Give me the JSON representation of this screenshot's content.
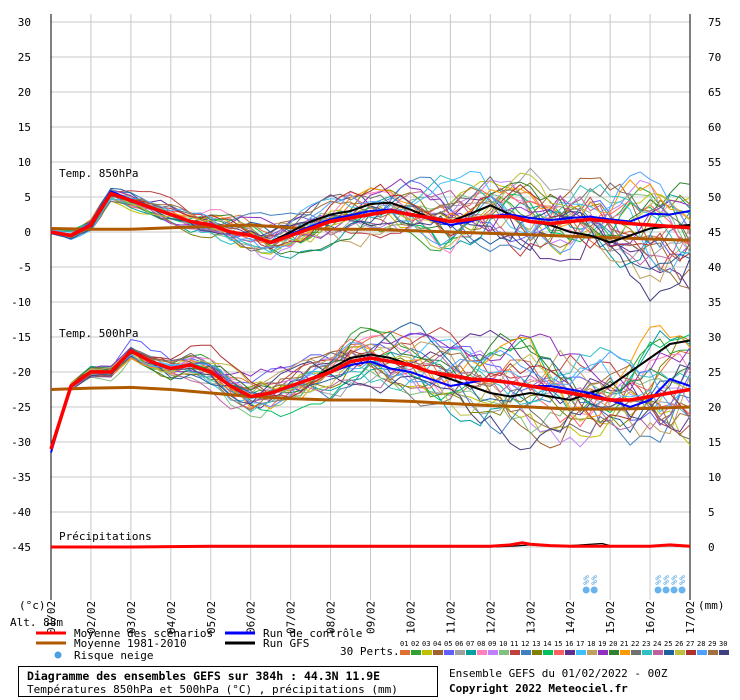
{
  "chart_data": {
    "type": "line",
    "title": "Diagramme des ensembles GEFS sur 384h : 44.3N 11.9E",
    "subtitle": "Températures 850hPa et 500hPa (°C) , précipitations (mm)",
    "run_info": "Ensemble GEFS du 01/02/2022 - 00Z",
    "copyright": "Copyright 2022 Meteociel.fr",
    "altitude": "Alt. 88m",
    "left_unit": "(°c)",
    "right_unit": "(mm)",
    "left_axis": {
      "ticks": [
        "30",
        "25",
        "20",
        "15",
        "10",
        "5",
        "0",
        "-5",
        "-10",
        "-15",
        "-20",
        "-25",
        "-30",
        "-35",
        "-40",
        "-45"
      ],
      "range": [
        -45,
        30
      ]
    },
    "right_axis": {
      "ticks": [
        "75",
        "70",
        "65",
        "60",
        "55",
        "50",
        "45",
        "40",
        "35",
        "30",
        "25",
        "20",
        "15",
        "10",
        "5",
        "0"
      ],
      "range": [
        0,
        75
      ]
    },
    "dates": [
      "01/02",
      "02/02",
      "03/02",
      "04/02",
      "05/02",
      "06/02",
      "07/02",
      "08/02",
      "09/02",
      "10/02",
      "11/02",
      "12/02",
      "13/02",
      "14/02",
      "15/02",
      "16/02",
      "17/02"
    ],
    "panel_labels": {
      "t850": "Temp. 850hPa",
      "t500": "Temp. 500hPa",
      "precip": "Précipitations"
    },
    "snow_risk_marker": "%%",
    "snow_risk_days": [
      13.4,
      13.6,
      15.2,
      15.4,
      15.6,
      15.8
    ],
    "members_count_label": "30 Perts.",
    "member_labels": [
      "01",
      "02",
      "03",
      "04",
      "05",
      "06",
      "07",
      "08",
      "09",
      "10",
      "11",
      "12",
      "13",
      "14",
      "15",
      "16",
      "17",
      "18",
      "19",
      "20",
      "21",
      "22",
      "23",
      "24",
      "25",
      "26",
      "27",
      "28",
      "29",
      "30"
    ],
    "member_colors": [
      "#e07030",
      "#30a030",
      "#c0c000",
      "#a06030",
      "#6060ff",
      "#a0a0a0",
      "#00a0a0",
      "#ff80c0",
      "#c080ff",
      "#80c080",
      "#c04040",
      "#4080c0",
      "#808000",
      "#00c060",
      "#ff6060",
      "#603090",
      "#40c0ff",
      "#c0a060",
      "#9030c0",
      "#308030",
      "#ff9900",
      "#707070",
      "#30c0c0",
      "#c060a0",
      "#2060a0",
      "#c0c040",
      "#b03030",
      "#50a0ff",
      "#a07040",
      "#404080"
    ],
    "legend": [
      {
        "label": "Moyenne des scénarios",
        "color": "#ff0000"
      },
      {
        "label": "Moyenne 1981-2010",
        "color": "#b05a00"
      },
      {
        "label": "Risque neige",
        "color": "#4aa0e0"
      },
      {
        "label": "Run de contrôle",
        "color": "#0000ff"
      },
      {
        "label": "Run GFS",
        "color": "#000000"
      }
    ],
    "series": [
      {
        "name": "Moyenne des scénarios",
        "panel": "t850",
        "x": [
          0,
          0.5,
          1,
          1.5,
          2,
          2.5,
          3,
          3.5,
          4,
          4.5,
          5,
          5.5,
          6,
          6.5,
          7,
          7.5,
          8,
          8.5,
          9,
          9.5,
          10,
          10.5,
          11,
          11.5,
          12,
          12.5,
          13,
          13.5,
          14,
          14.5,
          15,
          15.5,
          16
        ],
        "y": [
          0,
          -0.5,
          1,
          5.5,
          4.5,
          3.5,
          2.5,
          1.5,
          1,
          0,
          -0.5,
          -1.5,
          -0.5,
          0.5,
          1.5,
          2,
          2.5,
          3,
          2.5,
          2,
          1.5,
          1.8,
          2.2,
          2.2,
          1.5,
          1.2,
          1.5,
          1.8,
          1.5,
          1.2,
          1,
          0.8,
          0.6
        ]
      },
      {
        "name": "Moyenne 1981-2010",
        "panel": "t850",
        "x": [
          0,
          1,
          2,
          3,
          4,
          5,
          6,
          7,
          8,
          9,
          10,
          11,
          12,
          13,
          14,
          15,
          16
        ],
        "y": [
          0.5,
          0.4,
          0.4,
          0.6,
          0.8,
          1,
          0.6,
          0.4,
          0.4,
          0.2,
          0,
          -0.2,
          -0.4,
          -0.6,
          -0.8,
          -1,
          -1.2
        ]
      },
      {
        "name": "Run de contrôle",
        "panel": "t850",
        "x": [
          0,
          0.5,
          1,
          1.5,
          2,
          2.5,
          3,
          3.5,
          4,
          4.5,
          5,
          5.5,
          6,
          6.5,
          7,
          7.5,
          8,
          8.5,
          9,
          9.5,
          10,
          10.5,
          11,
          11.5,
          12,
          12.5,
          13,
          13.5,
          14,
          14.5,
          15,
          15.5,
          16
        ],
        "y": [
          0,
          -0.5,
          1.2,
          5.8,
          4.6,
          3.5,
          2.4,
          1.4,
          1,
          0,
          -0.4,
          -1.6,
          -0.3,
          0.8,
          1.8,
          2.4,
          3,
          3.2,
          2.6,
          1.8,
          1,
          1.5,
          2.3,
          2.5,
          2,
          1.7,
          2,
          2.2,
          1.8,
          1.5,
          2.6,
          2.5,
          3
        ]
      },
      {
        "name": "Run GFS",
        "panel": "t850",
        "x": [
          0,
          0.5,
          1,
          1.5,
          2,
          2.5,
          3,
          3.5,
          4,
          4.5,
          5,
          5.5,
          6,
          6.5,
          7,
          7.5,
          8,
          8.5,
          9,
          9.5,
          10,
          10.5,
          11,
          11.5,
          12,
          12.5,
          13,
          13.5,
          14,
          14.5,
          15,
          15.5,
          16
        ],
        "y": [
          0,
          -0.6,
          1,
          5.6,
          4.5,
          3.4,
          2.5,
          1.5,
          1,
          0,
          -0.5,
          -1.4,
          0,
          1.5,
          2.5,
          3,
          4,
          4.2,
          3.2,
          2,
          1.5,
          2.6,
          3.8,
          2.5,
          1.5,
          1,
          0,
          -0.5,
          -1.5,
          -0.5,
          0.5,
          0.8,
          1
        ]
      },
      {
        "name": "Moyenne des scénarios",
        "panel": "t500",
        "x": [
          0,
          0.5,
          1,
          1.5,
          2,
          2.5,
          3,
          3.5,
          4,
          4.5,
          5,
          5.5,
          6,
          6.5,
          7,
          7.5,
          8,
          8.5,
          9,
          9.5,
          10,
          10.5,
          11,
          11.5,
          12,
          12.5,
          13,
          13.5,
          14,
          14.5,
          15,
          15.5,
          16
        ],
        "y": [
          -31,
          -22,
          -20,
          -20,
          -17,
          -18.5,
          -19.5,
          -19,
          -20,
          -22,
          -23.5,
          -23,
          -22,
          -21,
          -20,
          -18.5,
          -18,
          -18.5,
          -19,
          -20,
          -20.5,
          -21,
          -21.2,
          -21.5,
          -22,
          -22.5,
          -23,
          -23.5,
          -24,
          -24,
          -23.5,
          -23,
          -22.5
        ]
      },
      {
        "name": "Moyenne 1981-2010",
        "panel": "t500",
        "x": [
          0,
          1,
          2,
          3,
          4,
          5,
          6,
          7,
          8,
          9,
          10,
          11,
          12,
          13,
          14,
          15,
          16
        ],
        "y": [
          -22.5,
          -22.3,
          -22.2,
          -22.5,
          -23,
          -23.5,
          -23.8,
          -24,
          -24,
          -24.2,
          -24.5,
          -24.8,
          -25,
          -25.3,
          -25.3,
          -25.2,
          -25
        ]
      },
      {
        "name": "Run de contrôle",
        "panel": "t500",
        "x": [
          0,
          0.5,
          1,
          1.5,
          2,
          2.5,
          3,
          3.5,
          4,
          4.5,
          5,
          5.5,
          6,
          6.5,
          7,
          7.5,
          8,
          8.5,
          9,
          9.5,
          10,
          10.5,
          11,
          11.5,
          12,
          12.5,
          13,
          13.5,
          14,
          14.5,
          15,
          15.5,
          16
        ],
        "y": [
          -31.5,
          -22,
          -20,
          -20,
          -17,
          -18.5,
          -19.5,
          -19,
          -20,
          -22,
          -23.5,
          -23,
          -22,
          -21,
          -20,
          -19,
          -18.5,
          -19.5,
          -20,
          -21,
          -22,
          -21.5,
          -21,
          -21.5,
          -22,
          -22,
          -22.5,
          -23,
          -24,
          -25,
          -24,
          -21,
          -22
        ]
      },
      {
        "name": "Run GFS",
        "panel": "t500",
        "x": [
          0,
          0.5,
          1,
          1.5,
          2,
          2.5,
          3,
          3.5,
          4,
          4.5,
          5,
          5.5,
          6,
          6.5,
          7,
          7.5,
          8,
          8.5,
          9,
          9.5,
          10,
          10.5,
          11,
          11.5,
          12,
          12.5,
          13,
          13.5,
          14,
          14.5,
          15,
          15.5,
          16
        ],
        "y": [
          -31,
          -22,
          -20,
          -20,
          -17,
          -18.5,
          -19.5,
          -19,
          -20,
          -22,
          -23.5,
          -23,
          -22,
          -21,
          -19.5,
          -18,
          -17.5,
          -18,
          -19,
          -20,
          -21,
          -22,
          -23,
          -23.5,
          -23,
          -23.5,
          -24,
          -23,
          -22,
          -20,
          -18,
          -16,
          -15.5
        ]
      },
      {
        "name": "Moyenne des scénarios",
        "panel": "precip",
        "x": [
          0,
          2,
          4,
          6,
          8,
          10,
          11,
          11.5,
          11.8,
          12,
          12.5,
          13,
          14,
          15,
          15.5,
          16
        ],
        "y_mm": [
          0,
          0,
          0.1,
          0.1,
          0.1,
          0.1,
          0.1,
          0.3,
          0.6,
          0.4,
          0.2,
          0.1,
          0.1,
          0.1,
          0.3,
          0.1
        ]
      },
      {
        "name": "Run GFS",
        "panel": "precip",
        "x": [
          0,
          4,
          8,
          11,
          11.5,
          12,
          13,
          13.8,
          14,
          14.5,
          15,
          15.5,
          16
        ],
        "y_mm": [
          0,
          0,
          0,
          0,
          0.1,
          0.3,
          0.2,
          0.5,
          0.2,
          0.1,
          0.1,
          0.2,
          0
        ]
      }
    ]
  }
}
